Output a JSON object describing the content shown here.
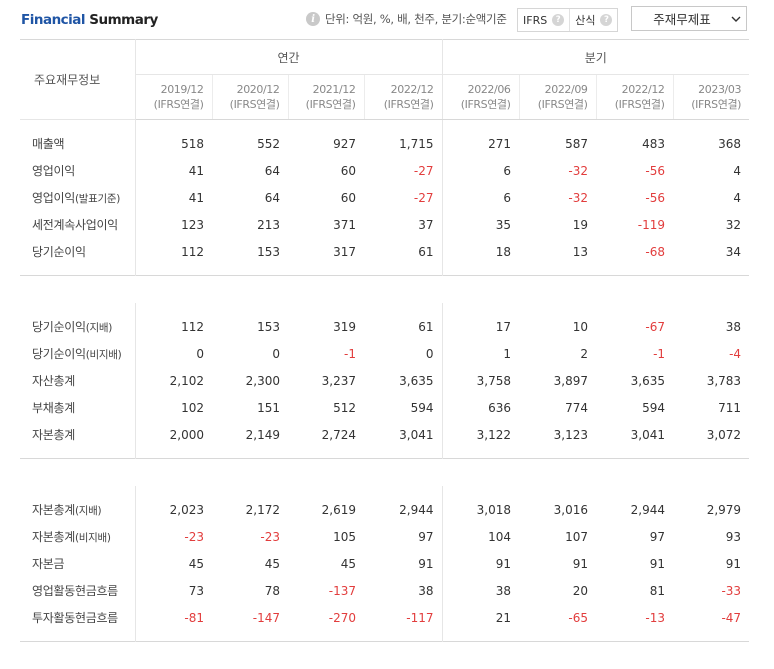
{
  "header": {
    "title_part1": "Financial",
    "title_part2": " Summary",
    "info_icon": "info-icon",
    "unit_text": "단위: 억원, %, 배, 천주, 분기:순액기준",
    "toggle": [
      {
        "label": "IFRS",
        "icon": "help-icon"
      },
      {
        "label": "산식",
        "icon": "help-icon"
      }
    ],
    "select_value": "주재무제표",
    "select_icon": "chevron-down-icon"
  },
  "table": {
    "row_header": "주요재무정보",
    "group_annual": "연간",
    "group_quarter": "분기",
    "columns": [
      {
        "period": "2019/12",
        "basis": "(IFRS연결)"
      },
      {
        "period": "2020/12",
        "basis": "(IFRS연결)"
      },
      {
        "period": "2021/12",
        "basis": "(IFRS연결)"
      },
      {
        "period": "2022/12",
        "basis": "(IFRS연결)"
      },
      {
        "period": "2022/06",
        "basis": "(IFRS연결)"
      },
      {
        "period": "2022/09",
        "basis": "(IFRS연결)"
      },
      {
        "period": "2022/12",
        "basis": "(IFRS연결)"
      },
      {
        "period": "2023/03",
        "basis": "(IFRS연결)"
      }
    ],
    "groups": [
      [
        {
          "main": "매출액",
          "sub": "",
          "values": [
            "518",
            "552",
            "927",
            "1,715",
            "271",
            "587",
            "483",
            "368"
          ]
        },
        {
          "main": "영업이익",
          "sub": "",
          "values": [
            "41",
            "64",
            "60",
            "-27",
            "6",
            "-32",
            "-56",
            "4"
          ]
        },
        {
          "main": "영업이익",
          "sub": "(발표기준)",
          "values": [
            "41",
            "64",
            "60",
            "-27",
            "6",
            "-32",
            "-56",
            "4"
          ]
        },
        {
          "main": "세전계속사업이익",
          "sub": "",
          "values": [
            "123",
            "213",
            "371",
            "37",
            "35",
            "19",
            "-119",
            "32"
          ]
        },
        {
          "main": "당기순이익",
          "sub": "",
          "values": [
            "112",
            "153",
            "317",
            "61",
            "18",
            "13",
            "-68",
            "34"
          ]
        }
      ],
      [
        {
          "main": "당기순이익",
          "sub": "(지배)",
          "values": [
            "112",
            "153",
            "319",
            "61",
            "17",
            "10",
            "-67",
            "38"
          ]
        },
        {
          "main": "당기순이익",
          "sub": "(비지배)",
          "values": [
            "0",
            "0",
            "-1",
            "0",
            "1",
            "2",
            "-1",
            "-4"
          ]
        },
        {
          "main": "자산총계",
          "sub": "",
          "values": [
            "2,102",
            "2,300",
            "3,237",
            "3,635",
            "3,758",
            "3,897",
            "3,635",
            "3,783"
          ]
        },
        {
          "main": "부채총계",
          "sub": "",
          "values": [
            "102",
            "151",
            "512",
            "594",
            "636",
            "774",
            "594",
            "711"
          ]
        },
        {
          "main": "자본총계",
          "sub": "",
          "values": [
            "2,000",
            "2,149",
            "2,724",
            "3,041",
            "3,122",
            "3,123",
            "3,041",
            "3,072"
          ]
        }
      ],
      [
        {
          "main": "자본총계",
          "sub": "(지배)",
          "values": [
            "2,023",
            "2,172",
            "2,619",
            "2,944",
            "3,018",
            "3,016",
            "2,944",
            "2,979"
          ]
        },
        {
          "main": "자본총계",
          "sub": "(비지배)",
          "values": [
            "-23",
            "-23",
            "105",
            "97",
            "104",
            "107",
            "97",
            "93"
          ]
        },
        {
          "main": "자본금",
          "sub": "",
          "values": [
            "45",
            "45",
            "45",
            "91",
            "91",
            "91",
            "91",
            "91"
          ]
        },
        {
          "main": "영업활동현금흐름",
          "sub": "",
          "values": [
            "73",
            "78",
            "-137",
            "38",
            "38",
            "20",
            "81",
            "-33"
          ]
        },
        {
          "main": "투자활동현금흐름",
          "sub": "",
          "values": [
            "-81",
            "-147",
            "-270",
            "-117",
            "21",
            "-65",
            "-13",
            "-47"
          ]
        }
      ]
    ]
  },
  "colors": {
    "title_blue": "#1f55a5",
    "negative_red": "#e23d3d"
  }
}
